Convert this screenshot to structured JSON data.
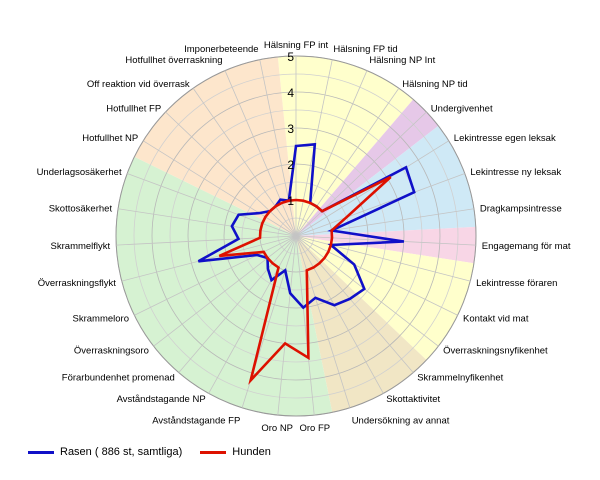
{
  "chart_data": {
    "type": "radar",
    "title": "",
    "rmax": 5,
    "ticks": [
      "1",
      "2",
      "3",
      "4",
      "5"
    ],
    "categories": [
      "Hälsning FP int",
      "Hälsning FP tid",
      "Hälsning NP Int",
      "Hälsning NP tid",
      "Undergivenhet",
      "Lekintresse egen leksak",
      "Lekintresse ny leksak",
      "Dragkampsintresse",
      "Engagemang för mat",
      "Lekintresse föraren",
      "Kontakt vid mat",
      "Överraskningsnyfikenhet",
      "Skrammelnyfikenhet",
      "Skottaktivitet",
      "Undersökning av annat",
      "Oro FP",
      "Oro NP",
      "Avståndstagande FP",
      "Avståndstagande NP",
      "Förarbundenhet promenad",
      "Överraskningsoro",
      "Skrammeloro",
      "Överraskningsflykt",
      "Skrammelflykt",
      "Skottosäkerhet",
      "Underlagsosäkerhet",
      "Hotfullhet NP",
      "Hotfullhet FP",
      "Off reaktion vid överrask",
      "Hotfullhet överraskning",
      "Imponerbeteende"
    ],
    "sectors": [
      {
        "from": 0,
        "to": 3,
        "color": "#ffffcc"
      },
      {
        "from": 4,
        "to": 4,
        "color": "#e6c8e8"
      },
      {
        "from": 5,
        "to": 7,
        "color": "#cfe9f6"
      },
      {
        "from": 8,
        "to": 8,
        "color": "#f8d6e6"
      },
      {
        "from": 9,
        "to": 11,
        "color": "#ffffcc"
      },
      {
        "from": 12,
        "to": 14,
        "color": "#f1e6c5"
      },
      {
        "from": 15,
        "to": 25,
        "color": "#d6f2d2"
      },
      {
        "from": 26,
        "to": 30,
        "color": "#fde6cc"
      }
    ],
    "series": [
      {
        "name": "Rasen ( 886 st, samtliga)",
        "color": "#1010c8",
        "values": [
          2.5,
          2.6,
          1.0,
          1.0,
          1.0,
          3.6,
          3.5,
          1.0,
          3.0,
          1.0,
          1.8,
          2.4,
          2.3,
          2.2,
          1.8,
          2.0,
          1.6,
          1.0,
          1.4,
          1.2,
          1.0,
          1.2,
          2.8,
          1.6,
          1.8,
          1.7,
          1.2,
          1.0,
          1.0,
          1.1,
          1.0
        ]
      },
      {
        "name": "Hunden",
        "color": "#dd1100",
        "values": [
          1.0,
          1.0,
          1.0,
          1.0,
          1.0,
          3.1,
          1.5,
          1.0,
          1.0,
          1.0,
          1.0,
          1.0,
          1.0,
          1.0,
          1.0,
          3.4,
          3.0,
          4.2,
          1.0,
          1.0,
          1.0,
          1.0,
          2.2,
          1.0,
          1.0,
          1.0,
          1.0,
          1.0,
          1.0,
          1.0,
          1.0
        ]
      }
    ],
    "legend_position": "bottom-left",
    "grid": true
  }
}
